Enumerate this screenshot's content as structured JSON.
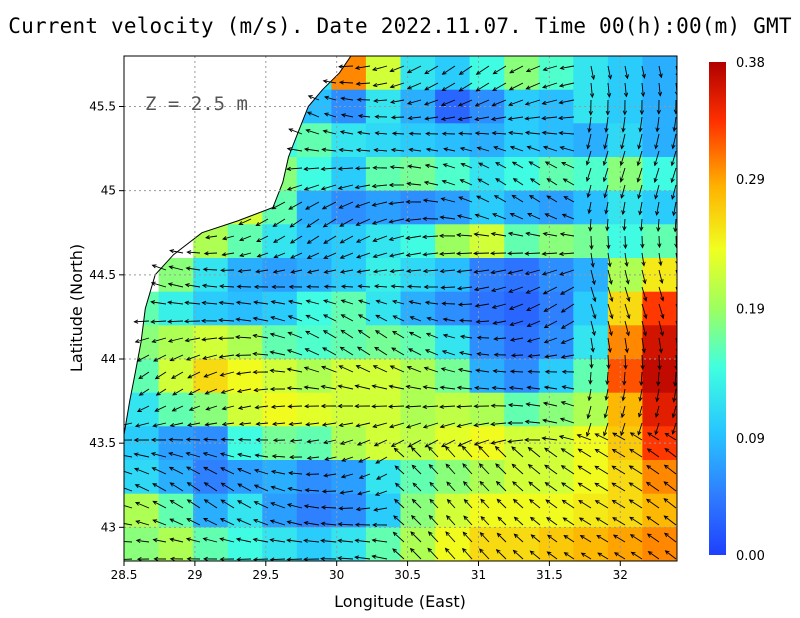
{
  "title": "Current velocity (m/s). Date 2022.11.07. Time 00(h):00(m) GMT",
  "depth_label": "Z  =  2.5 m",
  "xlabel": "Longitude (East)",
  "ylabel": "Latitude (North)",
  "colors": {
    "land": "#ffffff",
    "coast": "#000000",
    "grid": "#9a9a9a",
    "arrow": "#000000"
  },
  "chart_data": {
    "type": "heatmap",
    "title": "Current velocity (m/s). Date 2022.11.07. Time 00(h):00(m) GMT",
    "xlabel": "Longitude (East)",
    "ylabel": "Latitude (North)",
    "xlim": [
      28.5,
      32.4
    ],
    "ylim": [
      42.8,
      45.8
    ],
    "x_ticks": [
      "28.5",
      "29",
      "29.5",
      "30",
      "30.5",
      "31",
      "31.5",
      "32"
    ],
    "x_tick_values": [
      28.5,
      29,
      29.5,
      30,
      30.5,
      31,
      31.5,
      32
    ],
    "y_ticks": [
      "43",
      "43.5",
      "44",
      "44.5",
      "45",
      "45.5"
    ],
    "y_tick_values": [
      43,
      43.5,
      44,
      44.5,
      45,
      45.5
    ],
    "grid": true,
    "colorbar": {
      "ticks": [
        "0.38",
        "0.29",
        "0.19",
        "0.09",
        "0.00"
      ],
      "tick_values": [
        0.38,
        0.29,
        0.19,
        0.09,
        0.0
      ],
      "min": 0.0,
      "max": 0.38,
      "colors": [
        "#1e40ff",
        "#2f7cff",
        "#27c6ff",
        "#40ffe0",
        "#9cff60",
        "#f0ff20",
        "#ffb000",
        "#ff3000",
        "#b00000"
      ]
    },
    "coastline": [
      [
        30.1,
        45.8
      ],
      [
        30.02,
        45.7
      ],
      [
        29.9,
        45.6
      ],
      [
        29.8,
        45.5
      ],
      [
        29.72,
        45.33
      ],
      [
        29.66,
        45.2
      ],
      [
        29.62,
        45.05
      ],
      [
        29.55,
        44.9
      ],
      [
        29.3,
        44.82
      ],
      [
        29.05,
        44.75
      ],
      [
        28.85,
        44.62
      ],
      [
        28.72,
        44.5
      ],
      [
        28.65,
        44.3
      ],
      [
        28.62,
        44.1
      ],
      [
        28.58,
        43.92
      ],
      [
        28.54,
        43.75
      ],
      [
        28.5,
        43.55
      ]
    ],
    "velocity_field": [
      {
        "lat": 45.7,
        "speeds": [
          null,
          null,
          null,
          null,
          0.05,
          0.12,
          0.3,
          0.22,
          0.12,
          0.1,
          0.14,
          0.18,
          0.15,
          0.12,
          0.1,
          0.08
        ]
      },
      {
        "lat": 45.5,
        "speeds": [
          null,
          null,
          null,
          null,
          0.1,
          0.09,
          0.06,
          0.12,
          0.08,
          0.03,
          0.06,
          0.1,
          0.09,
          0.12,
          0.1,
          0.08
        ]
      },
      {
        "lat": 45.3,
        "speeds": [
          null,
          null,
          null,
          null,
          0.14,
          0.16,
          0.12,
          0.11,
          0.1,
          0.09,
          0.08,
          0.1,
          0.09,
          0.08,
          0.11,
          0.08
        ]
      },
      {
        "lat": 45.1,
        "speeds": [
          null,
          null,
          null,
          null,
          0.18,
          0.14,
          0.1,
          0.16,
          0.17,
          0.15,
          0.12,
          0.14,
          0.16,
          0.15,
          0.18,
          0.14
        ]
      },
      {
        "lat": 44.9,
        "speeds": [
          null,
          null,
          null,
          0.22,
          0.16,
          0.08,
          0.06,
          0.07,
          0.06,
          0.07,
          0.1,
          0.08,
          0.07,
          0.09,
          0.12,
          0.1
        ]
      },
      {
        "lat": 44.7,
        "speeds": [
          null,
          null,
          0.2,
          0.16,
          0.12,
          0.09,
          0.1,
          0.12,
          0.14,
          0.19,
          0.22,
          0.16,
          0.18,
          0.17,
          0.14,
          0.16
        ]
      },
      {
        "lat": 44.5,
        "speeds": [
          null,
          0.18,
          0.12,
          0.08,
          0.07,
          0.08,
          0.1,
          0.13,
          0.11,
          0.09,
          0.05,
          0.04,
          0.06,
          0.08,
          0.2,
          0.25
        ]
      },
      {
        "lat": 44.3,
        "speeds": [
          0.16,
          0.13,
          0.1,
          0.09,
          0.1,
          0.14,
          0.16,
          0.12,
          0.08,
          0.06,
          0.04,
          0.03,
          0.05,
          0.1,
          0.26,
          0.33
        ]
      },
      {
        "lat": 44.1,
        "speeds": [
          0.18,
          0.2,
          0.22,
          0.2,
          0.16,
          0.15,
          0.16,
          0.17,
          0.16,
          0.12,
          0.06,
          0.04,
          0.06,
          0.12,
          0.3,
          0.36
        ]
      },
      {
        "lat": 43.9,
        "speeds": [
          0.16,
          0.22,
          0.26,
          0.24,
          0.22,
          0.2,
          0.22,
          0.22,
          0.2,
          0.17,
          0.08,
          0.06,
          0.1,
          0.16,
          0.32,
          0.37
        ]
      },
      {
        "lat": 43.7,
        "speeds": [
          0.12,
          0.16,
          0.18,
          0.22,
          0.24,
          0.23,
          0.22,
          0.22,
          0.2,
          0.21,
          0.2,
          0.16,
          0.18,
          0.2,
          0.28,
          0.35
        ]
      },
      {
        "lat": 43.5,
        "speeds": [
          0.1,
          0.07,
          0.06,
          0.14,
          0.17,
          0.16,
          0.2,
          0.22,
          0.21,
          0.23,
          0.24,
          0.22,
          0.22,
          0.24,
          0.27,
          0.33
        ]
      },
      {
        "lat": 43.3,
        "speeds": [
          0.11,
          0.08,
          0.05,
          0.07,
          0.08,
          0.06,
          0.07,
          0.12,
          0.16,
          0.18,
          0.2,
          0.22,
          0.22,
          0.24,
          0.26,
          0.3
        ]
      },
      {
        "lat": 43.1,
        "speeds": [
          0.2,
          0.16,
          0.08,
          0.12,
          0.07,
          0.05,
          0.06,
          0.1,
          0.18,
          0.22,
          0.24,
          0.24,
          0.24,
          0.25,
          0.26,
          0.28
        ]
      },
      {
        "lat": 42.9,
        "speeds": [
          0.18,
          0.2,
          0.16,
          0.14,
          0.12,
          0.1,
          0.12,
          0.16,
          0.2,
          0.24,
          0.26,
          0.26,
          0.27,
          0.28,
          0.29,
          0.3
        ]
      }
    ]
  }
}
